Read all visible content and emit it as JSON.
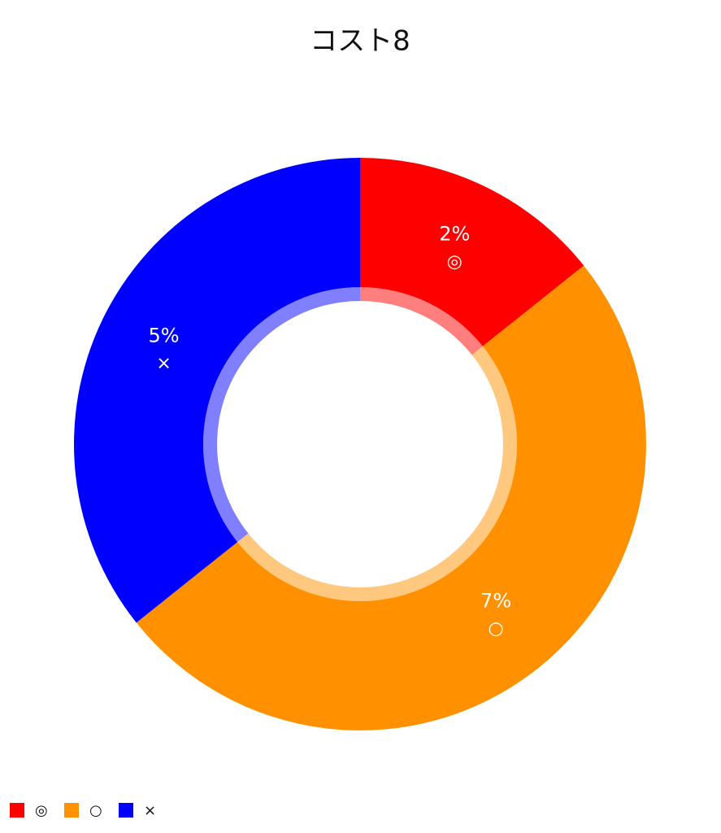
{
  "chart_data": {
    "type": "pie",
    "title": "コスト8",
    "categories": [
      "◎",
      "○",
      "×"
    ],
    "values": [
      2,
      7,
      5
    ],
    "value_labels": [
      "2%",
      "7%",
      "5%"
    ],
    "colors": [
      "#ff0000",
      "#ff9100",
      "#0000ff"
    ],
    "legend": "bottom-left"
  }
}
